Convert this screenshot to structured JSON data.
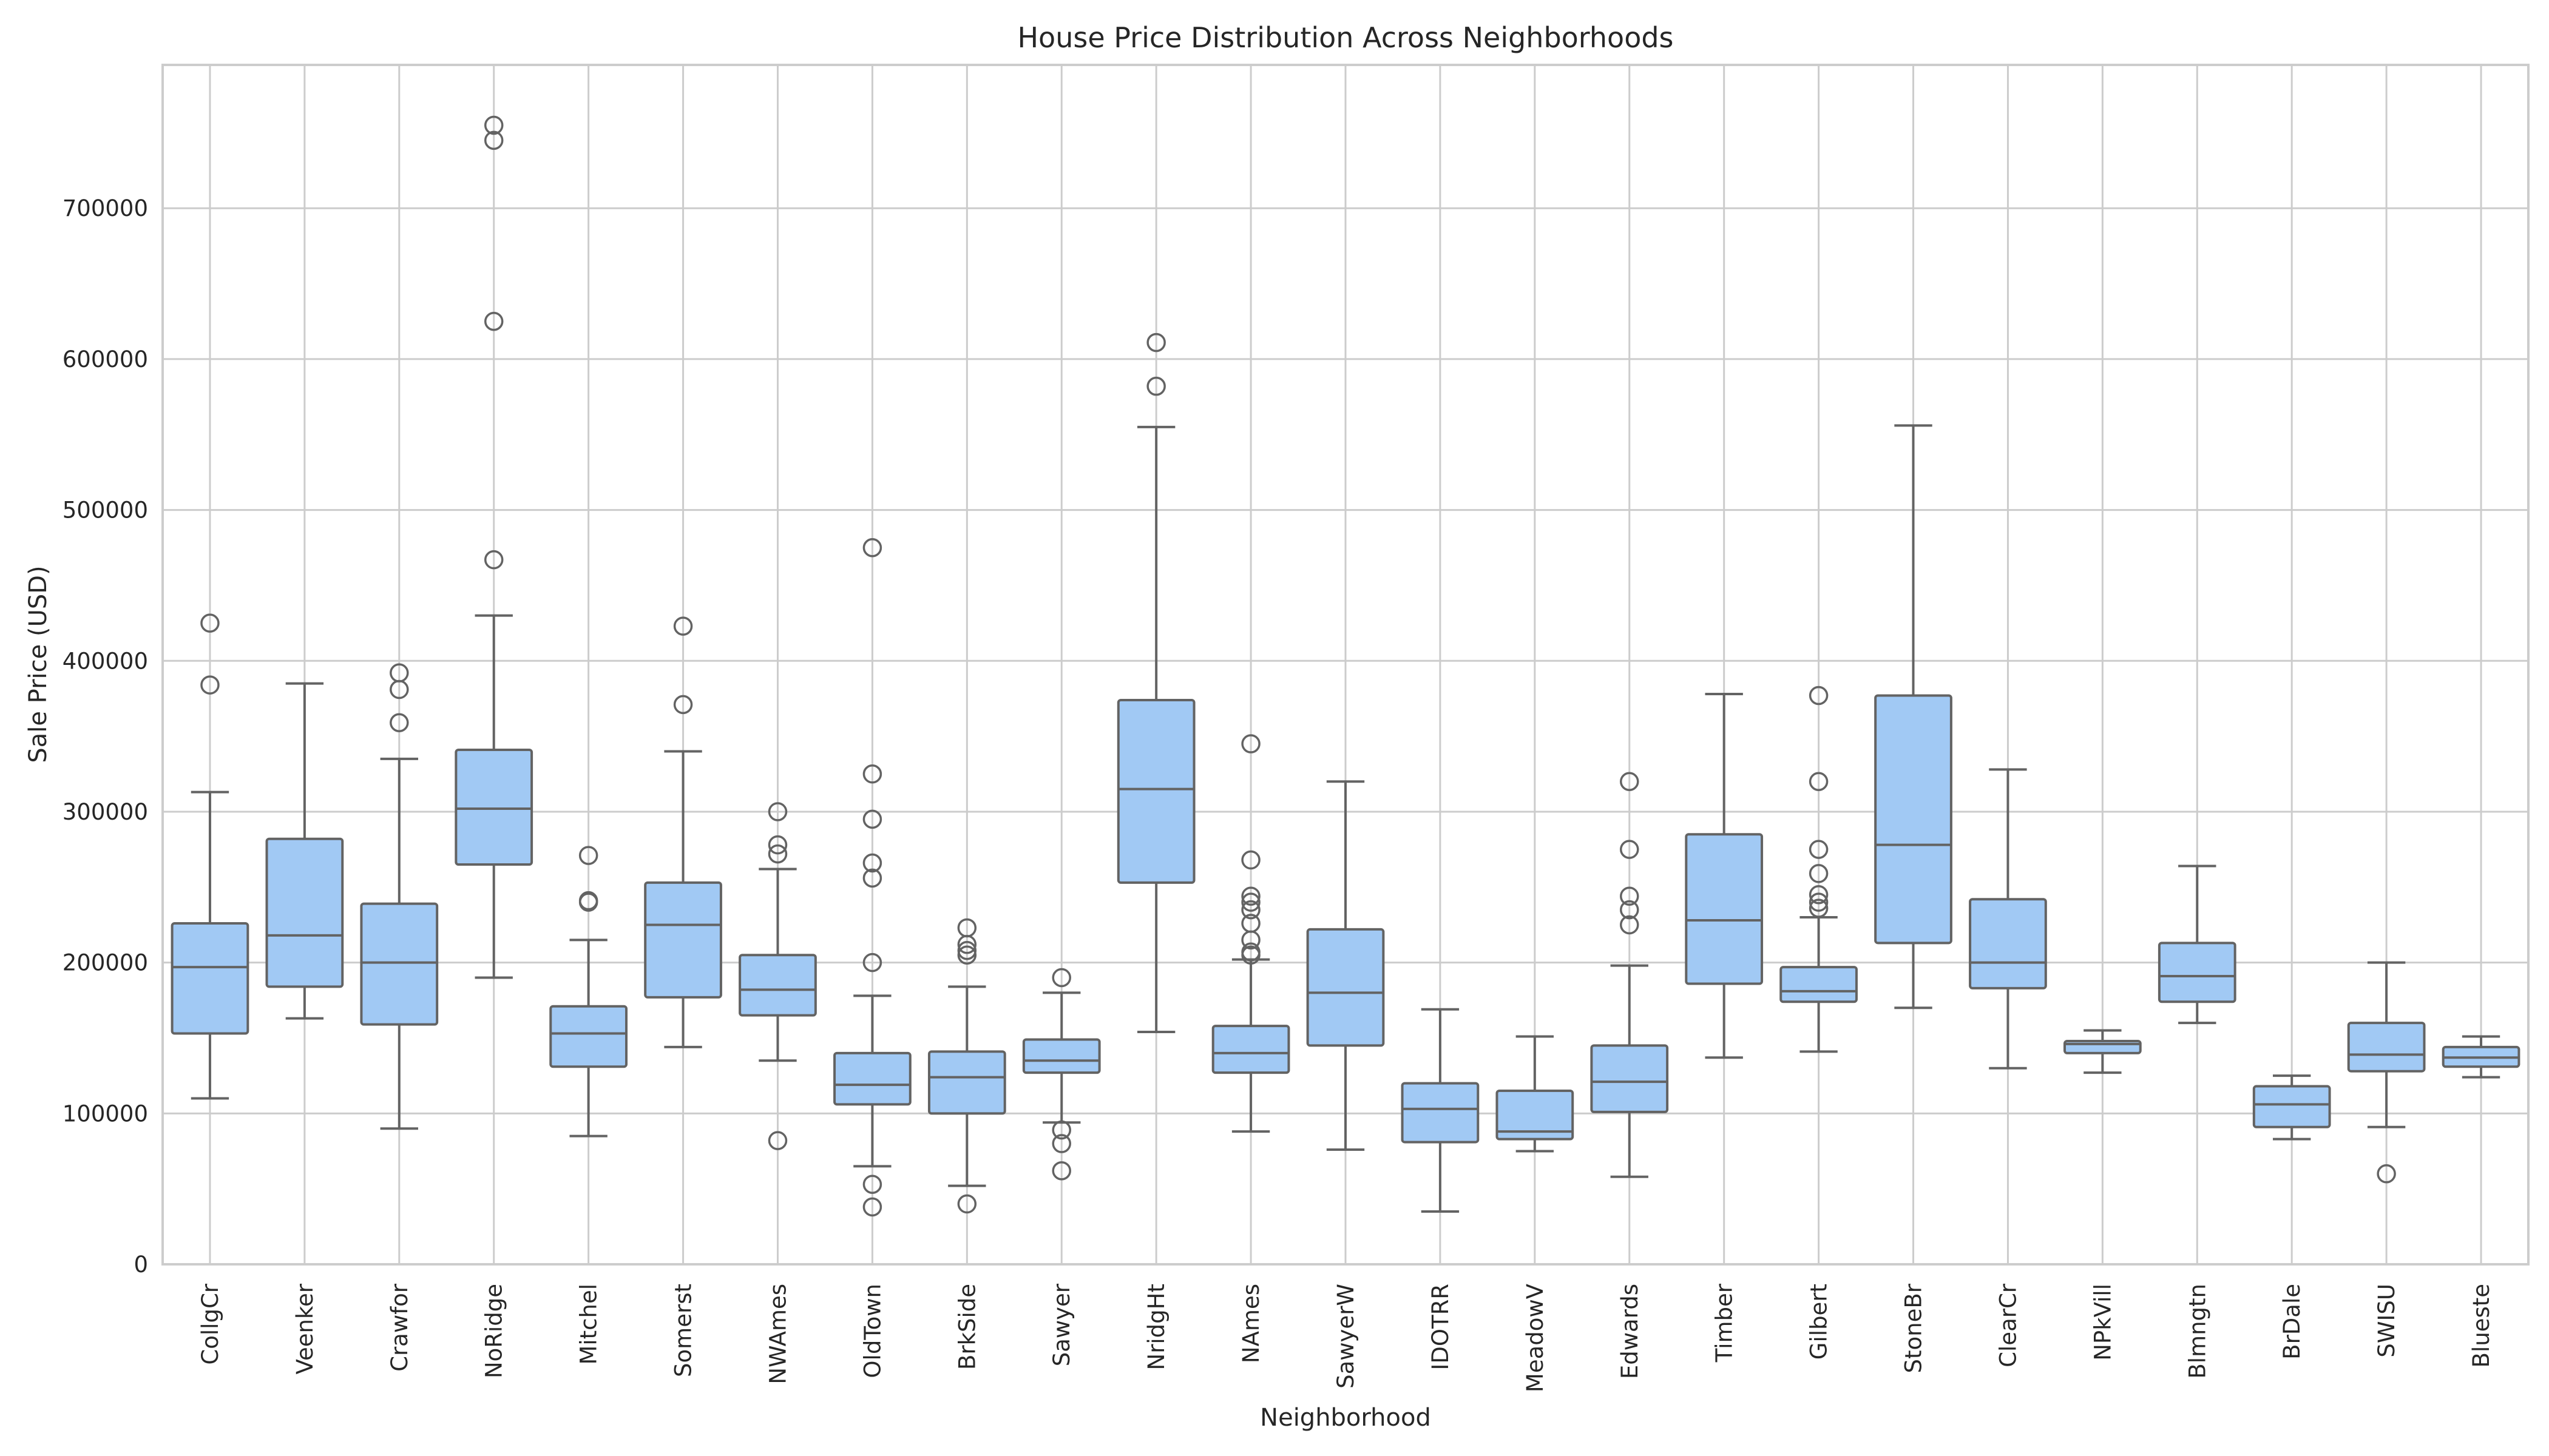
{
  "chart_data": {
    "type": "box",
    "title": "House Price Distribution Across Neighborhoods",
    "xlabel": "Neighborhood",
    "ylabel": "Sale Price (USD)",
    "ylim": [
      0,
      795000
    ],
    "yticks": [
      0,
      100000,
      200000,
      300000,
      400000,
      500000,
      600000,
      700000
    ],
    "grid": true,
    "box_color": "#a1c9f4",
    "line_color": "#636363",
    "categories": [
      "CollgCr",
      "Veenker",
      "Crawfor",
      "NoRidge",
      "Mitchel",
      "Somerst",
      "NWAmes",
      "OldTown",
      "BrkSide",
      "Sawyer",
      "NridgHt",
      "NAmes",
      "SawyerW",
      "IDOTRR",
      "MeadowV",
      "Edwards",
      "Timber",
      "Gilbert",
      "StoneBr",
      "ClearCr",
      "NPkVill",
      "Blmngtn",
      "BrDale",
      "SWISU",
      "Blueste"
    ],
    "boxes": [
      {
        "name": "CollgCr",
        "whislo": 110000,
        "q1": 153000,
        "med": 197000,
        "q3": 226000,
        "whishi": 313000,
        "fliers": [
          384000,
          425000
        ]
      },
      {
        "name": "Veenker",
        "whislo": 163000,
        "q1": 184000,
        "med": 218000,
        "q3": 282000,
        "whishi": 385000,
        "fliers": []
      },
      {
        "name": "Crawfor",
        "whislo": 90000,
        "q1": 159000,
        "med": 200000,
        "q3": 239000,
        "whishi": 335000,
        "fliers": [
          359000,
          381000,
          392000
        ]
      },
      {
        "name": "NoRidge",
        "whislo": 190000,
        "q1": 265000,
        "med": 302000,
        "q3": 341000,
        "whishi": 430000,
        "fliers": [
          467000,
          625000,
          745000,
          755000
        ]
      },
      {
        "name": "Mitchel",
        "whislo": 85000,
        "q1": 131000,
        "med": 153000,
        "q3": 171000,
        "whishi": 215000,
        "fliers": [
          240000,
          241000,
          271000
        ]
      },
      {
        "name": "Somerst",
        "whislo": 144000,
        "q1": 177000,
        "med": 225000,
        "q3": 253000,
        "whishi": 340000,
        "fliers": [
          371000,
          423000
        ]
      },
      {
        "name": "NWAmes",
        "whislo": 135000,
        "q1": 165000,
        "med": 182000,
        "q3": 205000,
        "whishi": 262000,
        "fliers": [
          82000,
          272000,
          278000,
          300000
        ]
      },
      {
        "name": "OldTown",
        "whislo": 65000,
        "q1": 106000,
        "med": 119000,
        "q3": 140000,
        "whishi": 178000,
        "fliers": [
          38000,
          53000,
          200000,
          256000,
          266000,
          295000,
          325000,
          475000
        ]
      },
      {
        "name": "BrkSide",
        "whislo": 52000,
        "q1": 100000,
        "med": 124000,
        "q3": 141000,
        "whishi": 184000,
        "fliers": [
          40000,
          205000,
          208000,
          212000,
          223000
        ]
      },
      {
        "name": "Sawyer",
        "whislo": 94000,
        "q1": 127000,
        "med": 135000,
        "q3": 149000,
        "whishi": 180000,
        "fliers": [
          62000,
          80000,
          89000,
          190000
        ]
      },
      {
        "name": "NridgHt",
        "whislo": 154000,
        "q1": 253000,
        "med": 315000,
        "q3": 374000,
        "whishi": 555000,
        "fliers": [
          582000,
          611000
        ]
      },
      {
        "name": "NAmes",
        "whislo": 88000,
        "q1": 127000,
        "med": 140000,
        "q3": 158000,
        "whishi": 202000,
        "fliers": [
          205000,
          207000,
          215000,
          226000,
          235000,
          240000,
          244000,
          268000,
          345000
        ]
      },
      {
        "name": "SawyerW",
        "whislo": 76000,
        "q1": 145000,
        "med": 180000,
        "q3": 222000,
        "whishi": 320000,
        "fliers": []
      },
      {
        "name": "IDOTRR",
        "whislo": 35000,
        "q1": 81000,
        "med": 103000,
        "q3": 120000,
        "whishi": 169000,
        "fliers": []
      },
      {
        "name": "MeadowV",
        "whislo": 75000,
        "q1": 83000,
        "med": 88000,
        "q3": 115000,
        "whishi": 151000,
        "fliers": []
      },
      {
        "name": "Edwards",
        "whislo": 58000,
        "q1": 101000,
        "med": 121000,
        "q3": 145000,
        "whishi": 198000,
        "fliers": [
          225000,
          235000,
          244000,
          275000,
          320000
        ]
      },
      {
        "name": "Timber",
        "whislo": 137000,
        "q1": 186000,
        "med": 228000,
        "q3": 285000,
        "whishi": 378000,
        "fliers": []
      },
      {
        "name": "Gilbert",
        "whislo": 141000,
        "q1": 174000,
        "med": 181000,
        "q3": 197000,
        "whishi": 230000,
        "fliers": [
          236000,
          240000,
          245000,
          259000,
          275000,
          320000,
          377000
        ]
      },
      {
        "name": "StoneBr",
        "whislo": 170000,
        "q1": 213000,
        "med": 278000,
        "q3": 377000,
        "whishi": 556000,
        "fliers": []
      },
      {
        "name": "ClearCr",
        "whislo": 130000,
        "q1": 183000,
        "med": 200000,
        "q3": 242000,
        "whishi": 328000,
        "fliers": []
      },
      {
        "name": "NPkVill",
        "whislo": 127000,
        "q1": 140000,
        "med": 146000,
        "q3": 148000,
        "whishi": 155000,
        "fliers": []
      },
      {
        "name": "Blmngtn",
        "whislo": 160000,
        "q1": 174000,
        "med": 191000,
        "q3": 213000,
        "whishi": 264000,
        "fliers": []
      },
      {
        "name": "BrDale",
        "whislo": 83000,
        "q1": 91000,
        "med": 106000,
        "q3": 118000,
        "whishi": 125000,
        "fliers": []
      },
      {
        "name": "SWISU",
        "whislo": 91000,
        "q1": 128000,
        "med": 139000,
        "q3": 160000,
        "whishi": 200000,
        "fliers": [
          60000
        ]
      },
      {
        "name": "Blueste",
        "whislo": 124000,
        "q1": 131000,
        "med": 137000,
        "q3": 144000,
        "whishi": 151000,
        "fliers": []
      }
    ]
  }
}
